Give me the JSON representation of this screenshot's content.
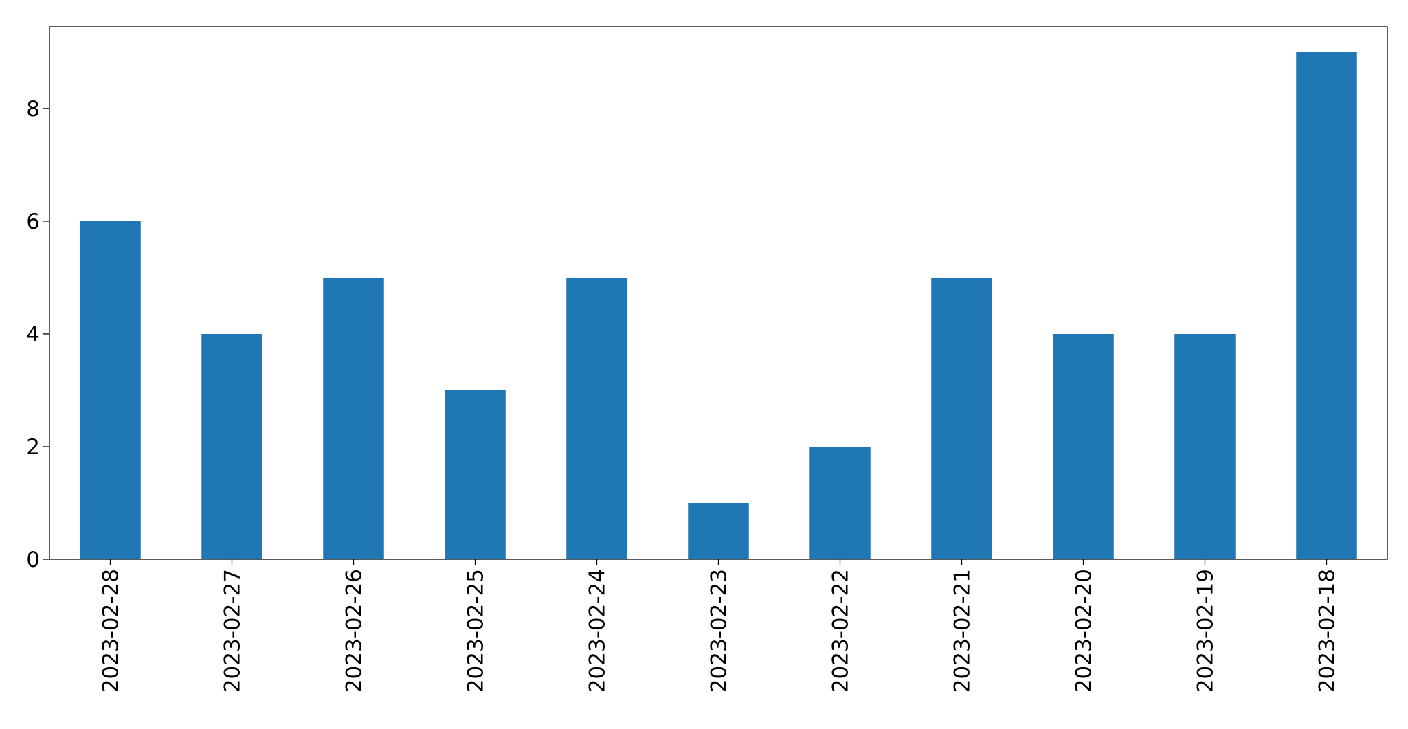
{
  "chart_data": {
    "type": "bar",
    "categories": [
      "2023-02-28",
      "2023-02-27",
      "2023-02-26",
      "2023-02-25",
      "2023-02-24",
      "2023-02-23",
      "2023-02-22",
      "2023-02-21",
      "2023-02-20",
      "2023-02-19",
      "2023-02-18"
    ],
    "values": [
      6,
      4,
      5,
      3,
      5,
      1,
      2,
      5,
      4,
      4,
      9
    ],
    "color": "#1f77b4",
    "ylim": [
      0,
      9.45
    ],
    "yticks": [
      0,
      2,
      4,
      6,
      8
    ],
    "grid": false
  }
}
